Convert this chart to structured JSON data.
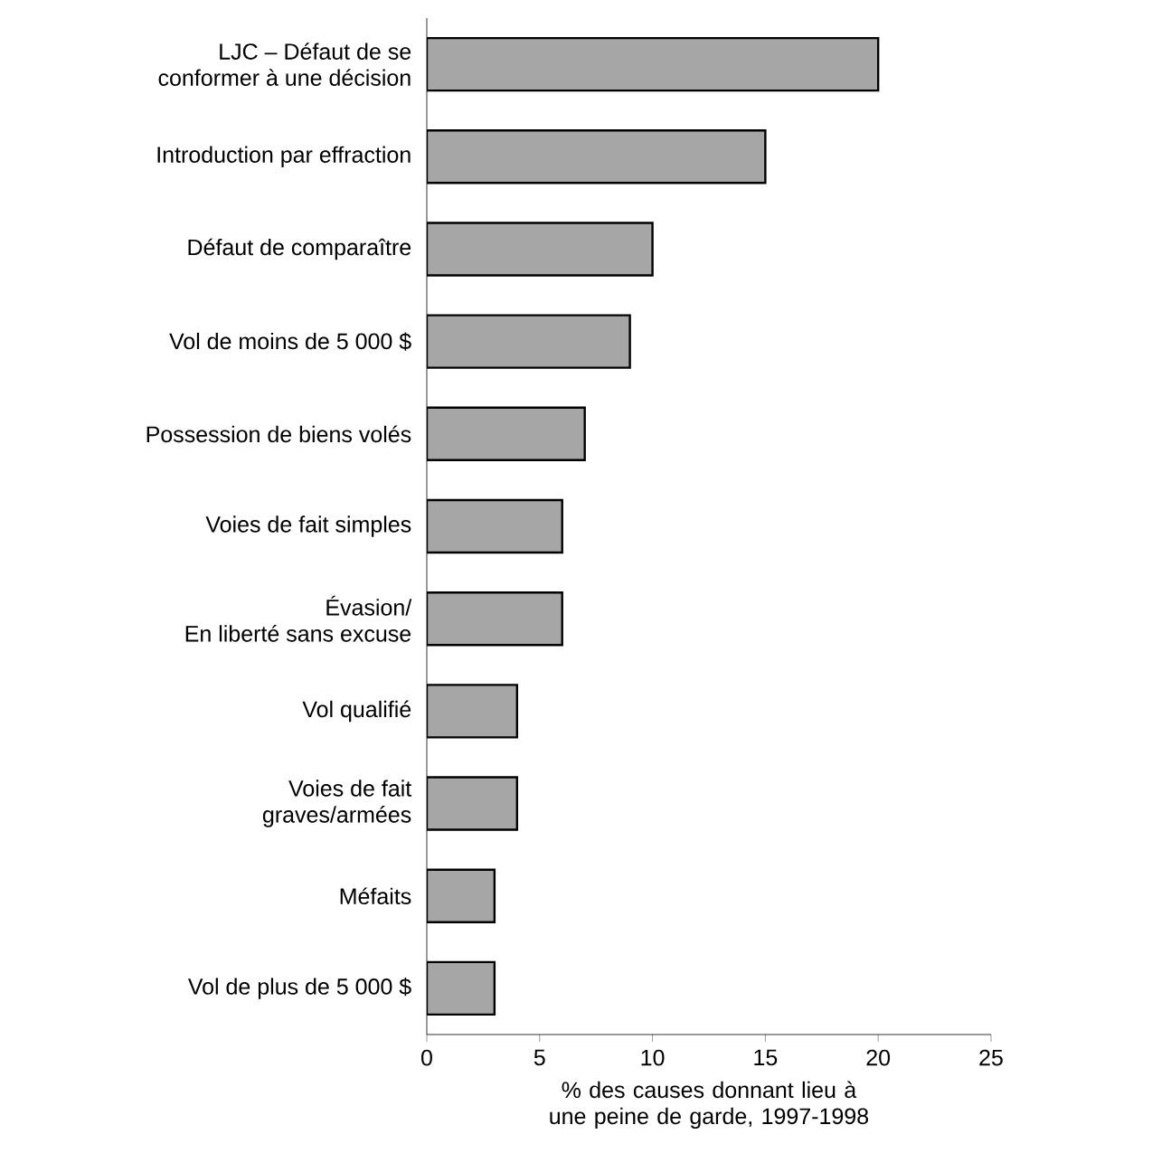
{
  "chart_data": {
    "type": "bar",
    "orientation": "horizontal",
    "categories": [
      "LJC – Défaut de se\nconformer à une décision",
      "Introduction par effraction",
      "Défaut de comparaître",
      "Vol de moins de 5 000 $",
      "Possession de biens volés",
      "Voies de fait simples",
      "Évasion/\nEn liberté sans excuse",
      "Vol qualifié",
      "Voies de fait\ngraves/armées",
      "Méfaits",
      "Vol de plus de 5 000 $"
    ],
    "values": [
      20,
      15,
      10,
      9,
      7,
      6,
      6,
      4,
      4,
      3,
      3
    ],
    "color": "#a6a6a6",
    "xlim": [
      0,
      25
    ],
    "xticks": [
      0,
      5,
      10,
      15,
      20,
      25
    ],
    "xlabel": "% des causes donnant lieu à une peine de garde, 1997-1998"
  }
}
